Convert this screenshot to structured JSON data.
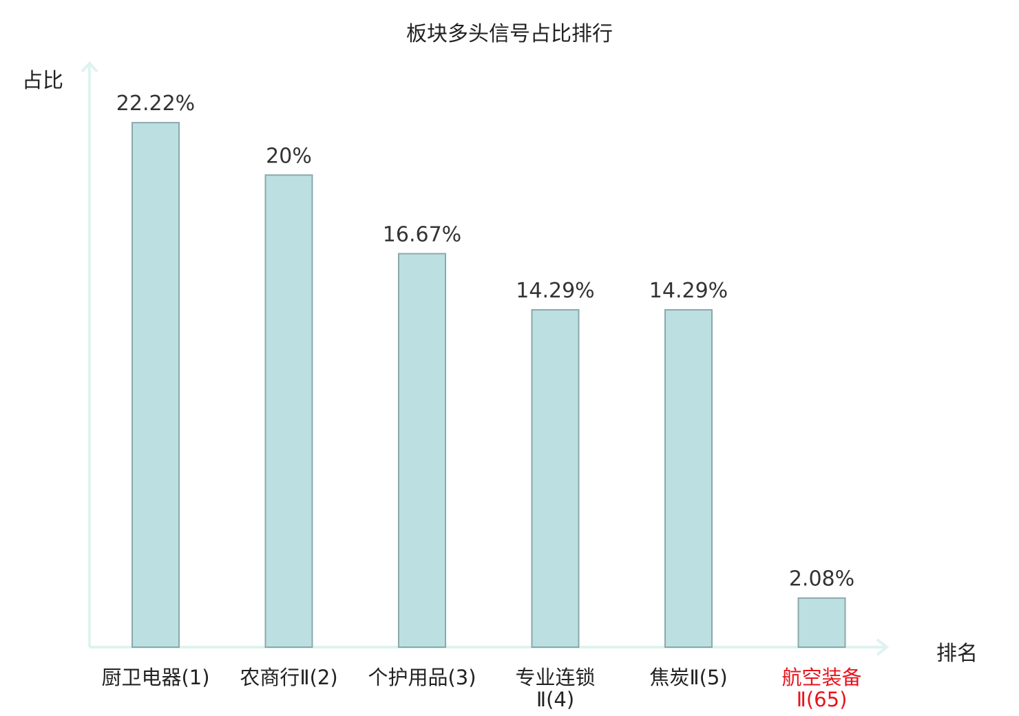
{
  "chart_data": {
    "type": "bar",
    "title": "板块多头信号占比排行",
    "ylabel": "占比",
    "xlabel": "排名",
    "categories": [
      [
        "厨卫电器(1)"
      ],
      [
        "农商行Ⅱ(2)"
      ],
      [
        "个护用品(3)"
      ],
      [
        "专业连锁",
        "Ⅱ(4)"
      ],
      [
        "焦炭Ⅱ(5)"
      ],
      [
        "航空装备",
        "Ⅱ(65)"
      ]
    ],
    "values": [
      22.22,
      20,
      16.67,
      14.29,
      14.29,
      2.08
    ],
    "value_labels": [
      "22.22%",
      "20%",
      "16.67%",
      "14.29%",
      "14.29%",
      "2.08%"
    ],
    "highlight_index": 5,
    "ylim": [
      0,
      24.5
    ],
    "grid": false,
    "colors": {
      "bar_fill": "#bce0e2",
      "bar_stroke": "#8aa8ab",
      "axis": "#dff2ef",
      "label": "#222222",
      "highlight": "#e8141c"
    }
  }
}
